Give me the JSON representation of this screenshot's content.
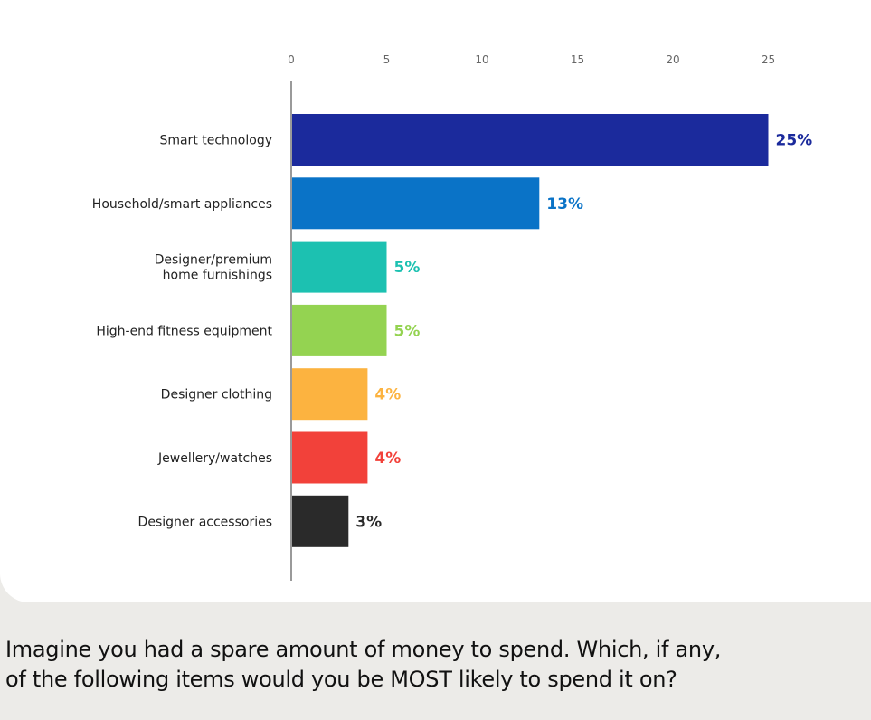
{
  "question": {
    "line1": "Imagine you had a spare amount of money to spend. Which, if any,",
    "line2": "of the following items would you be MOST likely to spend it on?"
  },
  "chart_data": {
    "type": "bar",
    "orientation": "horizontal",
    "title": "",
    "xlabel": "",
    "ylabel": "",
    "xlim": [
      0,
      25
    ],
    "x_ticks": [
      0,
      5,
      10,
      15,
      20,
      25
    ],
    "x_axis_position": "top",
    "grid": false,
    "categories": [
      [
        "Smart technology"
      ],
      [
        "Household/smart appliances"
      ],
      [
        "Designer/premium",
        "home furnishings"
      ],
      [
        "High-end fitness equipment"
      ],
      [
        "Designer clothing"
      ],
      [
        "Jewellery/watches"
      ],
      [
        "Designer accessories"
      ]
    ],
    "values": [
      25,
      13,
      5,
      5,
      4,
      4,
      3
    ],
    "data_labels": [
      "25%",
      "13%",
      "5%",
      "5%",
      "4%",
      "4%",
      "3%"
    ],
    "colors": [
      "#1b2a9c",
      "#0a73c7",
      "#1cc1b1",
      "#94d351",
      "#fcb340",
      "#f2413a",
      "#2a2a2a"
    ]
  }
}
